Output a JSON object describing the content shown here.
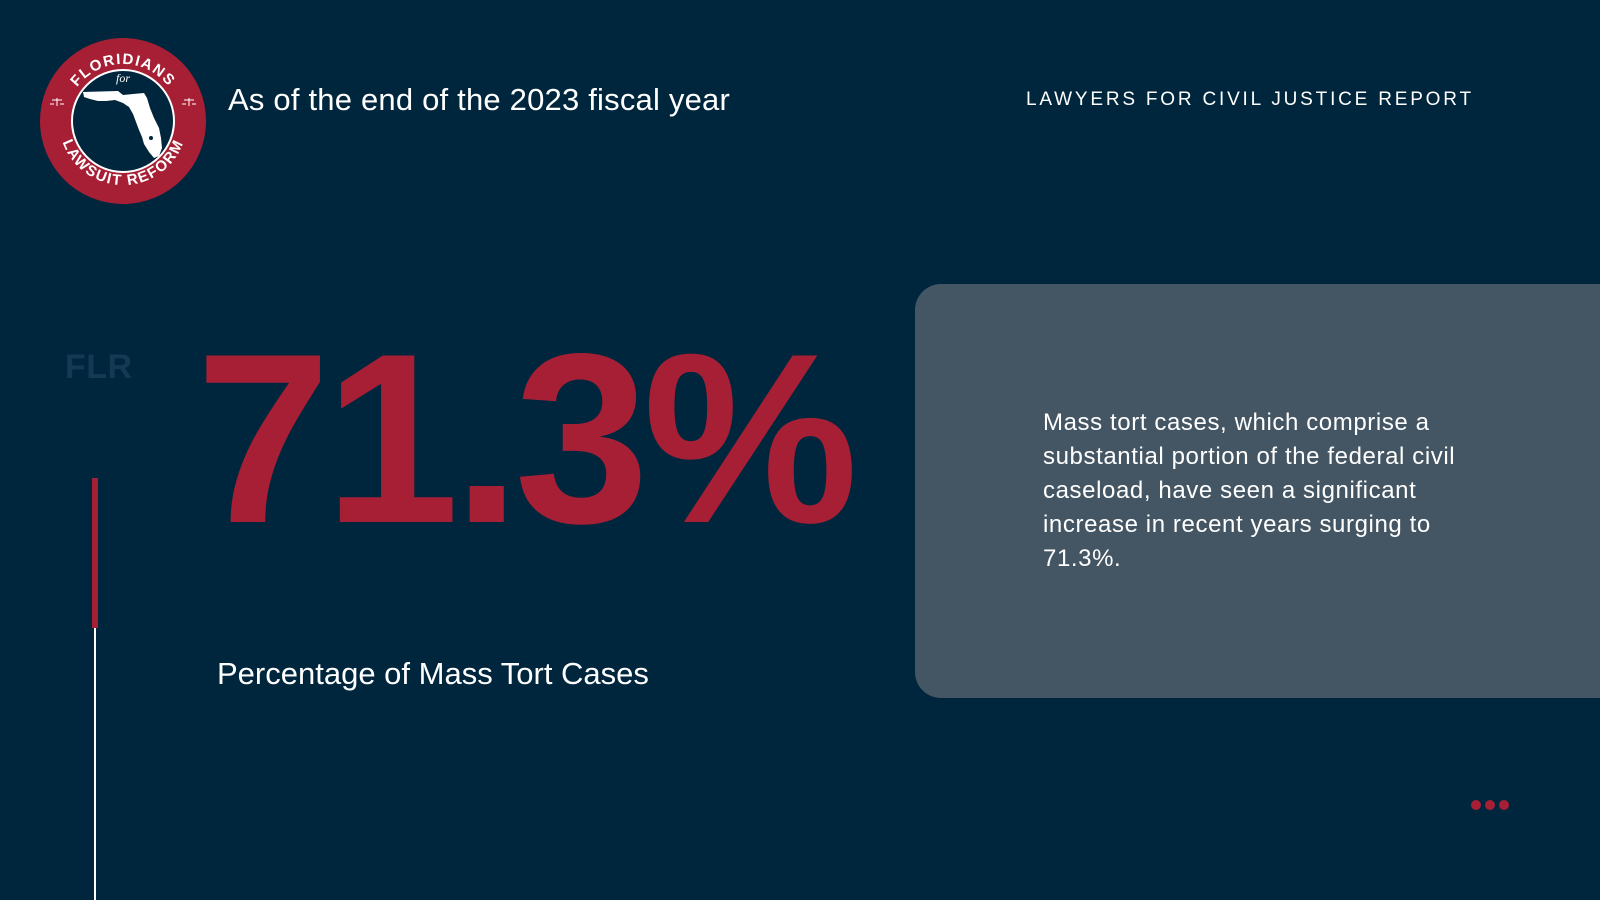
{
  "header": {
    "subtitle": "As of the end of the 2023 fiscal year",
    "report_label": "LAWYERS FOR CIVIL JUSTICE REPORT"
  },
  "logo": {
    "top_text": "FLORIDIANS",
    "middle_text": "for",
    "bottom_text": "LAWSUIT REFORM",
    "icon": "florida-map-icon",
    "colors": {
      "ring": "#a71f35",
      "center": "#00263d",
      "text": "#ffffff"
    }
  },
  "side": {
    "watermark": "FLR"
  },
  "stat": {
    "value": "71.3%",
    "label": "Percentage of Mass Tort Cases"
  },
  "card": {
    "text": "Mass tort cases, which comprise a substantial portion of the federal civil caseload, have seen a significant increase in recent years surging to 71.3%."
  },
  "decoration": {
    "dots_icon": "more-dots-icon"
  },
  "colors": {
    "background": "#00263d",
    "accent": "#a71f35",
    "card": "#445664",
    "watermark": "#143955",
    "text": "#ffffff"
  }
}
